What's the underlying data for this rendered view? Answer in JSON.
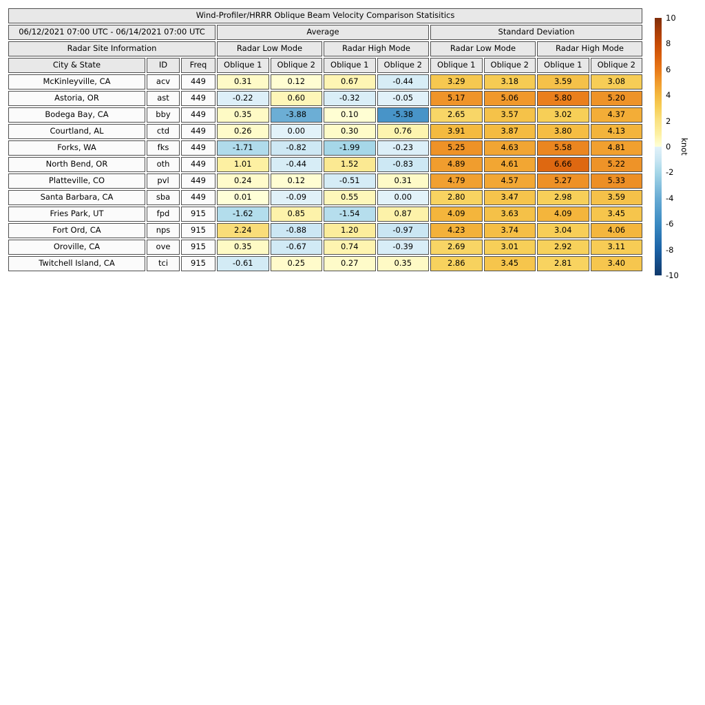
{
  "title": "Wind-Profiler/HRRR Oblique Beam Velocity Comparison Statisitics",
  "date_range": "06/12/2021 07:00 UTC - 06/14/2021 07:00 UTC",
  "group_headers": {
    "average": "Average",
    "std": "Standard Deviation"
  },
  "mode_headers": {
    "site": "Radar Site Information",
    "low": "Radar Low Mode",
    "high": "Radar High Mode"
  },
  "col_headers": {
    "city": "City & State",
    "id": "ID",
    "freq": "Freq",
    "ob1": "Oblique 1",
    "ob2": "Oblique 2"
  },
  "colorbar": {
    "unit": "knot",
    "vmin": -10,
    "vmax": 10,
    "ticks": [
      10,
      8,
      6,
      4,
      2,
      0,
      -2,
      -4,
      -6,
      -8,
      -10
    ],
    "pos_stops": [
      [
        0,
        "#ffffd8"
      ],
      [
        1,
        "#fdf0a2"
      ],
      [
        2,
        "#fae283"
      ],
      [
        3,
        "#f7cf58"
      ],
      [
        4,
        "#f4b83e"
      ],
      [
        5,
        "#f09a2c"
      ],
      [
        6,
        "#e87818"
      ],
      [
        7,
        "#d95f0d"
      ],
      [
        8,
        "#c64a04"
      ],
      [
        9,
        "#a73c07"
      ],
      [
        10,
        "#7f2d0a"
      ]
    ],
    "neg_stops": [
      [
        -10,
        "#10386b"
      ],
      [
        -8,
        "#1b62a6"
      ],
      [
        -6,
        "#3a8ac2"
      ],
      [
        -4,
        "#68abd4"
      ],
      [
        -2,
        "#a6d7e8"
      ],
      [
        -1,
        "#c9e6f3"
      ],
      [
        0,
        "#e2f2f9"
      ]
    ]
  },
  "chart_data": {
    "type": "heatmap",
    "title": "Wind-Profiler/HRRR Oblique Beam Velocity Comparison Statisitics",
    "value_columns": [
      "Avg Low Oblique 1",
      "Avg Low Oblique 2",
      "Avg High Oblique 1",
      "Avg High Oblique 2",
      "Std Low Oblique 1",
      "Std Low Oblique 2",
      "Std High Oblique 1",
      "Std High Oblique 2"
    ],
    "colorbar_range": [
      -10,
      10
    ],
    "colorbar_unit": "knot",
    "rows": [
      {
        "city": "McKinleyville, CA",
        "id": "acv",
        "freq": "449",
        "cells": [
          {
            "t": "0.31",
            "v": 0.31
          },
          {
            "t": "0.12",
            "v": 0.12
          },
          {
            "t": "0.67",
            "v": 0.67
          },
          {
            "t": "-0.44",
            "v": -0.44
          },
          {
            "t": "3.29",
            "v": 3.29
          },
          {
            "t": "3.18",
            "v": 3.18
          },
          {
            "t": "3.59",
            "v": 3.59
          },
          {
            "t": "3.08",
            "v": 3.08
          }
        ]
      },
      {
        "city": "Astoria, OR",
        "id": "ast",
        "freq": "449",
        "cells": [
          {
            "t": "-0.22",
            "v": -0.22
          },
          {
            "t": "0.60",
            "v": 0.6
          },
          {
            "t": "-0.32",
            "v": -0.32
          },
          {
            "t": "-0.05",
            "v": -0.05
          },
          {
            "t": "5.17",
            "v": 5.17
          },
          {
            "t": "5.06",
            "v": 5.06
          },
          {
            "t": "5.80",
            "v": 5.8
          },
          {
            "t": "5.20",
            "v": 5.2
          }
        ]
      },
      {
        "city": "Bodega Bay, CA",
        "id": "bby",
        "freq": "449",
        "cells": [
          {
            "t": "0.35",
            "v": 0.35
          },
          {
            "t": "-3.88",
            "v": -3.88
          },
          {
            "t": "0.10",
            "v": 0.1
          },
          {
            "t": "-5.38",
            "v": -5.38
          },
          {
            "t": "2.65",
            "v": 2.65
          },
          {
            "t": "3.57",
            "v": 3.57
          },
          {
            "t": "3.02",
            "v": 3.02
          },
          {
            "t": "4.37",
            "v": 4.37
          }
        ]
      },
      {
        "city": "Courtland, AL",
        "id": "ctd",
        "freq": "449",
        "cells": [
          {
            "t": "0.26",
            "v": 0.26
          },
          {
            "t": "0.00",
            "v": 0,
            "neg": true
          },
          {
            "t": "0.30",
            "v": 0.3
          },
          {
            "t": "0.76",
            "v": 0.76
          },
          {
            "t": "3.91",
            "v": 3.91
          },
          {
            "t": "3.87",
            "v": 3.87
          },
          {
            "t": "3.80",
            "v": 3.8
          },
          {
            "t": "4.13",
            "v": 4.13
          }
        ]
      },
      {
        "city": "Forks, WA",
        "id": "fks",
        "freq": "449",
        "cells": [
          {
            "t": "-1.71",
            "v": -1.71
          },
          {
            "t": "-0.82",
            "v": -0.82
          },
          {
            "t": "-1.99",
            "v": -1.99
          },
          {
            "t": "-0.23",
            "v": -0.23
          },
          {
            "t": "5.25",
            "v": 5.25
          },
          {
            "t": "4.63",
            "v": 4.63
          },
          {
            "t": "5.58",
            "v": 5.58
          },
          {
            "t": "4.81",
            "v": 4.81
          }
        ]
      },
      {
        "city": "North Bend, OR",
        "id": "oth",
        "freq": "449",
        "cells": [
          {
            "t": "1.01",
            "v": 1.01
          },
          {
            "t": "-0.44",
            "v": -0.44
          },
          {
            "t": "1.52",
            "v": 1.52
          },
          {
            "t": "-0.83",
            "v": -0.83
          },
          {
            "t": "4.89",
            "v": 4.89
          },
          {
            "t": "4.61",
            "v": 4.61
          },
          {
            "t": "6.66",
            "v": 6.66
          },
          {
            "t": "5.22",
            "v": 5.22
          }
        ]
      },
      {
        "city": "Platteville, CO",
        "id": "pvl",
        "freq": "449",
        "cells": [
          {
            "t": "0.24",
            "v": 0.24
          },
          {
            "t": "0.12",
            "v": 0.12
          },
          {
            "t": "-0.51",
            "v": -0.51
          },
          {
            "t": "0.31",
            "v": 0.31
          },
          {
            "t": "4.79",
            "v": 4.79
          },
          {
            "t": "4.57",
            "v": 4.57
          },
          {
            "t": "5.27",
            "v": 5.27
          },
          {
            "t": "5.33",
            "v": 5.33
          }
        ]
      },
      {
        "city": "Santa Barbara, CA",
        "id": "sba",
        "freq": "449",
        "cells": [
          {
            "t": "0.01",
            "v": 0.01
          },
          {
            "t": "-0.09",
            "v": -0.09
          },
          {
            "t": "0.55",
            "v": 0.55
          },
          {
            "t": "0.00",
            "v": 0,
            "neg": true
          },
          {
            "t": "2.80",
            "v": 2.8
          },
          {
            "t": "3.47",
            "v": 3.47
          },
          {
            "t": "2.98",
            "v": 2.98
          },
          {
            "t": "3.59",
            "v": 3.59
          }
        ]
      },
      {
        "city": "Fries Park, UT",
        "id": "fpd",
        "freq": "915",
        "cells": [
          {
            "t": "-1.62",
            "v": -1.62
          },
          {
            "t": "0.85",
            "v": 0.85
          },
          {
            "t": "-1.54",
            "v": -1.54
          },
          {
            "t": "0.87",
            "v": 0.87
          },
          {
            "t": "4.09",
            "v": 4.09
          },
          {
            "t": "3.63",
            "v": 3.63
          },
          {
            "t": "4.09",
            "v": 4.09
          },
          {
            "t": "3.45",
            "v": 3.45
          }
        ]
      },
      {
        "city": "Fort Ord, CA",
        "id": "nps",
        "freq": "915",
        "cells": [
          {
            "t": "2.24",
            "v": 2.24
          },
          {
            "t": "-0.88",
            "v": -0.88
          },
          {
            "t": "1.20",
            "v": 1.2
          },
          {
            "t": "-0.97",
            "v": -0.97
          },
          {
            "t": "4.23",
            "v": 4.23
          },
          {
            "t": "3.74",
            "v": 3.74
          },
          {
            "t": "3.04",
            "v": 3.04
          },
          {
            "t": "4.06",
            "v": 4.06
          }
        ]
      },
      {
        "city": "Oroville, CA",
        "id": "ove",
        "freq": "915",
        "cells": [
          {
            "t": "0.35",
            "v": 0.35
          },
          {
            "t": "-0.67",
            "v": -0.67
          },
          {
            "t": "0.74",
            "v": 0.74
          },
          {
            "t": "-0.39",
            "v": -0.39
          },
          {
            "t": "2.69",
            "v": 2.69
          },
          {
            "t": "3.01",
            "v": 3.01
          },
          {
            "t": "2.92",
            "v": 2.92
          },
          {
            "t": "3.11",
            "v": 3.11
          }
        ]
      },
      {
        "city": "Twitchell Island, CA",
        "id": "tci",
        "freq": "915",
        "cells": [
          {
            "t": "-0.61",
            "v": -0.61
          },
          {
            "t": "0.25",
            "v": 0.25
          },
          {
            "t": "0.27",
            "v": 0.27
          },
          {
            "t": "0.35",
            "v": 0.35
          },
          {
            "t": "2.86",
            "v": 2.86
          },
          {
            "t": "3.45",
            "v": 3.45
          },
          {
            "t": "2.81",
            "v": 2.81
          },
          {
            "t": "3.40",
            "v": 3.4
          }
        ]
      }
    ]
  }
}
